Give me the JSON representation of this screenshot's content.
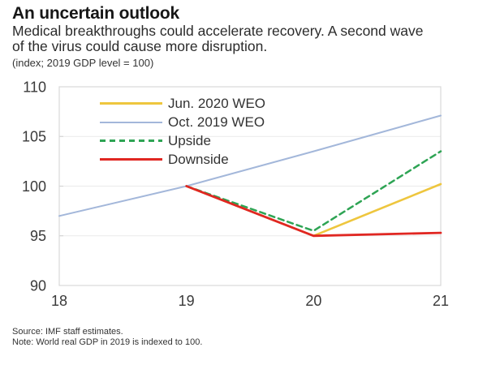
{
  "header": {
    "subtitle_lines": [
      "Medical breakthroughs could accelerate recovery. A second wave",
      "of the virus could cause more disruption."
    ]
  },
  "footer": {
    "source": "Source: IMF staff estimates.",
    "note": "Note: World real GDP in 2019 is indexed to 100."
  },
  "chart_data": {
    "type": "line",
    "title": "An uncertain outlook",
    "xlabel": "",
    "ylabel": "(index; 2019 GDP level = 100)",
    "xlim": [
      18,
      21
    ],
    "ylim": [
      90,
      110
    ],
    "xticks": [
      "18",
      "19",
      "20",
      "21"
    ],
    "yticks": [
      90,
      95,
      100,
      105,
      110
    ],
    "grid": "horizontal-only",
    "legend_position": "inside-top-left",
    "axis_color": "#d8d8d8",
    "gridline_color": "#eaeaea",
    "tick_label_color": "#3a3a3a",
    "series": [
      {
        "name": "Jun. 2020 WEO",
        "color": "#eec63e",
        "style": "solid",
        "width": 2.6,
        "points": [
          [
            19,
            100
          ],
          [
            20,
            95.0
          ],
          [
            21,
            100.2
          ]
        ]
      },
      {
        "name": "Oct. 2019 WEO",
        "color": "#a3b7da",
        "style": "solid",
        "width": 2.0,
        "points": [
          [
            18,
            97.0
          ],
          [
            19,
            100.0
          ],
          [
            20,
            103.5
          ],
          [
            21,
            107.1
          ]
        ]
      },
      {
        "name": "Upside",
        "color": "#2ea454",
        "style": "dashed",
        "width": 2.5,
        "points": [
          [
            19,
            100
          ],
          [
            20,
            95.5
          ],
          [
            21,
            103.5
          ]
        ]
      },
      {
        "name": "Downside",
        "color": "#e02722",
        "style": "solid",
        "width": 2.8,
        "points": [
          [
            19,
            100
          ],
          [
            20,
            95.0
          ],
          [
            21,
            95.3
          ]
        ]
      }
    ]
  }
}
